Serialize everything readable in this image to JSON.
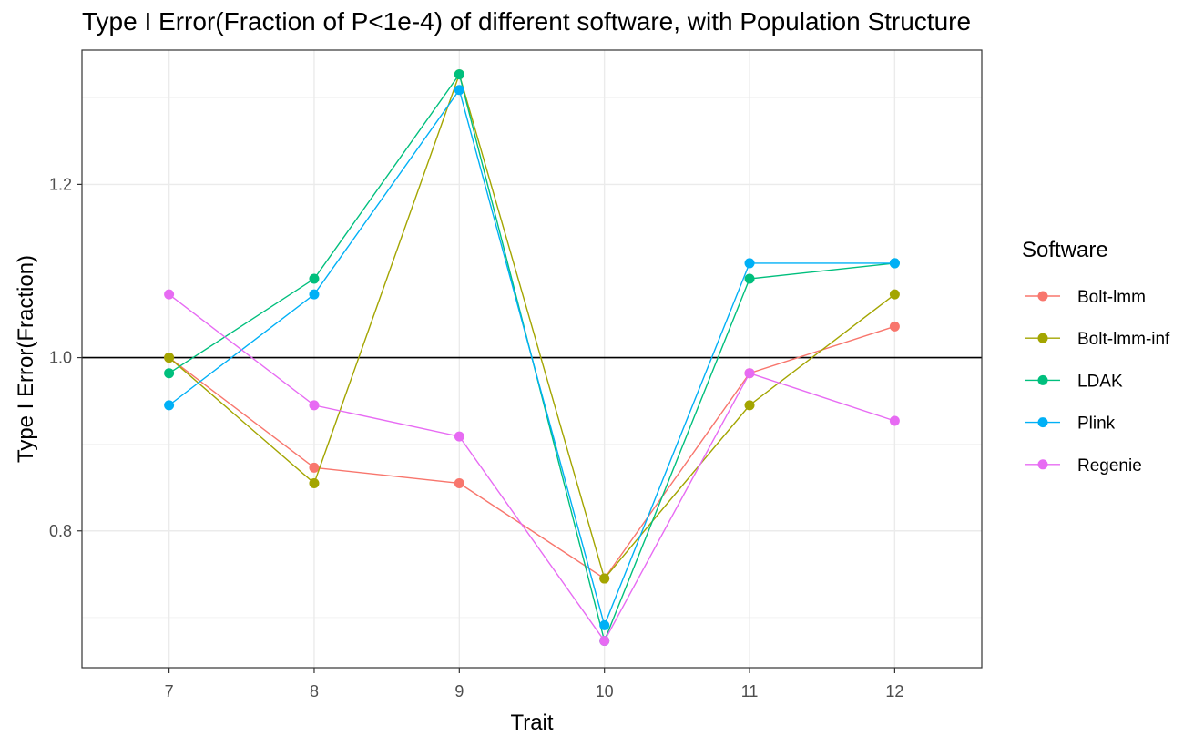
{
  "chart_data": {
    "type": "line",
    "title": "Type I Error(Fraction of P<1e-4) of different software, with Population Structure",
    "xlabel": "Trait",
    "ylabel": "Type I Error(Fraction)",
    "x": [
      7,
      8,
      9,
      10,
      11,
      12
    ],
    "x_tick_labels": [
      "7",
      "8",
      "9",
      "10",
      "11",
      "12"
    ],
    "y_tick_values": [
      0.8,
      1.0,
      1.2
    ],
    "y_tick_labels": [
      "0.8",
      "1.0",
      "1.2"
    ],
    "xlim": [
      6.4,
      12.6
    ],
    "ylim": [
      0.642,
      1.355
    ],
    "reference_line": 1.0,
    "grid": true,
    "legend": {
      "title": "Software",
      "position": "right"
    },
    "series": [
      {
        "name": "Bolt-lmm",
        "color": "#F8766D",
        "values": [
          1.0,
          0.873,
          0.855,
          0.745,
          0.982,
          1.036
        ]
      },
      {
        "name": "Bolt-lmm-inf",
        "color": "#A3A500",
        "values": [
          1.0,
          0.855,
          1.327,
          0.745,
          0.945,
          1.073
        ]
      },
      {
        "name": "LDAK",
        "color": "#00BF7D",
        "values": [
          0.982,
          1.091,
          1.327,
          0.673,
          1.091,
          1.109
        ]
      },
      {
        "name": "Plink",
        "color": "#00B0F6",
        "values": [
          0.945,
          1.073,
          1.309,
          0.691,
          1.109,
          1.109
        ]
      },
      {
        "name": "Regenie",
        "color": "#E76BF3",
        "values": [
          1.073,
          0.945,
          0.909,
          0.673,
          0.982,
          0.927
        ]
      }
    ]
  }
}
